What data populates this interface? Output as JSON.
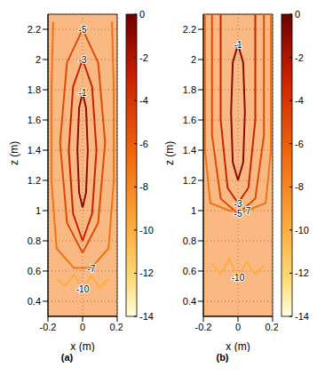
{
  "chart_data": [
    {
      "type": "contour",
      "title": "(a)",
      "xlabel": "x (m)",
      "ylabel": "z (m)",
      "xlim": [
        -0.2,
        0.2
      ],
      "xticks": [
        -0.2,
        0,
        0.2
      ],
      "ylim": [
        0.3,
        2.3
      ],
      "yticks": [
        0.4,
        0.6,
        0.8,
        1,
        1.2,
        1.4,
        1.6,
        1.8,
        2,
        2.2
      ],
      "grid": true,
      "colorbar": {
        "range": [
          -14,
          0
        ],
        "ticks": [
          0,
          -2,
          -4,
          -6,
          -8,
          -10,
          -12,
          -14
        ]
      },
      "contours": [
        {
          "level": -1,
          "x": [
            0,
            0.02,
            0.03,
            0.02,
            0,
            -0.02,
            -0.03,
            -0.02,
            0
          ],
          "y": [
            1.02,
            1.12,
            1.4,
            1.68,
            1.78,
            1.68,
            1.4,
            1.12,
            1.02
          ]
        },
        {
          "level": -3,
          "x": [
            0,
            0.055,
            0.08,
            0.055,
            0,
            -0.055,
            -0.08,
            -0.055,
            0
          ],
          "y": [
            0.8,
            0.98,
            1.4,
            1.82,
            2.0,
            1.82,
            1.4,
            0.98,
            0.8
          ]
        },
        {
          "level": -5,
          "x": [
            0,
            0.09,
            0.13,
            0.09,
            0,
            -0.09,
            -0.13,
            -0.09,
            0
          ],
          "y": [
            0.72,
            0.92,
            1.45,
            1.98,
            2.2,
            1.98,
            1.45,
            0.92,
            0.72
          ]
        },
        {
          "level": -7,
          "x": [
            -0.17,
            -0.18,
            -0.18,
            -0.15,
            -0.05,
            0.05,
            0.15,
            0.18,
            0.18,
            0.17
          ],
          "y": [
            2.25,
            1.8,
            1.2,
            0.75,
            0.62,
            0.62,
            0.75,
            1.2,
            1.8,
            2.25
          ]
        },
        {
          "level": -10,
          "x": [
            -0.15,
            -0.1,
            -0.05,
            0,
            0.05,
            0.1,
            0.15
          ],
          "y": [
            0.55,
            0.5,
            0.58,
            0.48,
            0.57,
            0.49,
            0.55
          ]
        }
      ]
    },
    {
      "type": "contour",
      "title": "(b)",
      "xlabel": "x (m)",
      "ylabel": "z (m)",
      "xlim": [
        -0.2,
        0.2
      ],
      "xticks": [
        -0.2,
        0,
        0.2
      ],
      "ylim": [
        0.3,
        2.3
      ],
      "yticks": [
        0.4,
        0.6,
        0.8,
        1,
        1.2,
        1.4,
        1.6,
        1.8,
        2,
        2.2
      ],
      "grid": true,
      "colorbar": {
        "range": [
          -14,
          0
        ],
        "ticks": [
          0,
          -2,
          -4,
          -6,
          -8,
          -10,
          -12,
          -14
        ]
      },
      "contours": [
        {
          "level": -1,
          "x": [
            0,
            0.03,
            0.04,
            0.03,
            0,
            -0.03,
            -0.04,
            -0.03,
            0
          ],
          "y": [
            1.2,
            1.32,
            1.65,
            1.98,
            2.1,
            1.98,
            1.65,
            1.32,
            1.2
          ]
        },
        {
          "level": -3,
          "x": [
            -0.1,
            -0.1,
            -0.06,
            0,
            0.06,
            0.1,
            0.1
          ],
          "y": [
            2.3,
            1.6,
            1.15,
            1.05,
            1.15,
            1.6,
            2.3
          ]
        },
        {
          "level": -5,
          "x": [
            -0.15,
            -0.15,
            -0.1,
            0,
            0.1,
            0.15,
            0.15
          ],
          "y": [
            2.3,
            1.5,
            1.08,
            0.98,
            1.08,
            1.5,
            2.3
          ]
        },
        {
          "level": -7,
          "x": [
            -0.19,
            -0.19,
            -0.16,
            -0.05,
            0.05,
            0.16,
            0.19,
            0.19
          ],
          "y": [
            2.3,
            1.4,
            1.05,
            1.0,
            1.0,
            1.05,
            1.4,
            2.3
          ]
        },
        {
          "level": -10,
          "x": [
            -0.15,
            -0.1,
            -0.05,
            0,
            0.05,
            0.1,
            0.15
          ],
          "y": [
            0.65,
            0.58,
            0.68,
            0.56,
            0.66,
            0.58,
            0.64
          ]
        }
      ]
    }
  ]
}
